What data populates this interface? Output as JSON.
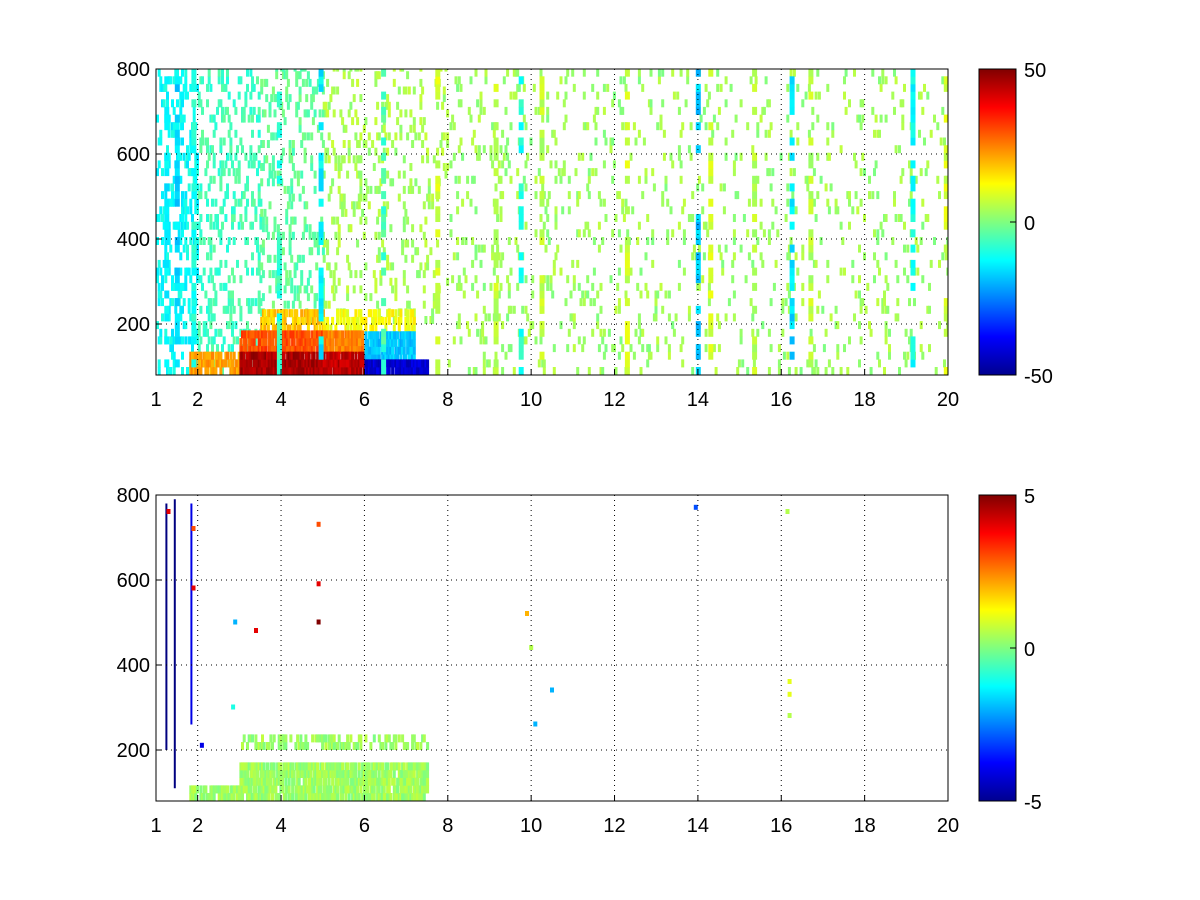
{
  "chart_data": [
    {
      "type": "heatmap",
      "title": "",
      "xlabel": "",
      "ylabel": "",
      "xlim": [
        1,
        20
      ],
      "ylim": [
        80,
        800
      ],
      "x_ticks": [
        1,
        2,
        4,
        6,
        8,
        10,
        12,
        14,
        16,
        18,
        20
      ],
      "x_tick_labels": [
        "1",
        "2",
        "4",
        "6",
        "8",
        "10",
        "12",
        "14",
        "16",
        "18",
        "20"
      ],
      "y_ticks": [
        200,
        400,
        600,
        800
      ],
      "y_tick_labels": [
        "200",
        "400",
        "600",
        "800"
      ],
      "grid": true,
      "colormap": "jet",
      "clim": [
        -50,
        50
      ],
      "colorbar_ticks": [
        50,
        0,
        -50
      ],
      "colorbar_tick_labels": [
        "50",
        "0",
        "-50"
      ],
      "regions": [
        {
          "x": [
            1.0,
            2.0
          ],
          "y": [
            80,
            800
          ],
          "value": -12,
          "density": 0.28
        },
        {
          "x": [
            2.0,
            3.5
          ],
          "y": [
            80,
            800
          ],
          "value": -6,
          "density": 0.22
        },
        {
          "x": [
            3.5,
            5.0
          ],
          "y": [
            200,
            800
          ],
          "value": -3,
          "density": 0.18
        },
        {
          "x": [
            5.0,
            8.0
          ],
          "y": [
            200,
            800
          ],
          "value": 4,
          "density": 0.13
        },
        {
          "x": [
            8.0,
            12.0
          ],
          "y": [
            80,
            800
          ],
          "value": 3,
          "density": 0.09
        },
        {
          "x": [
            12.0,
            20.0
          ],
          "y": [
            80,
            800
          ],
          "value": 3,
          "density": 0.07
        },
        {
          "x": [
            3.5,
            5.0
          ],
          "y": [
            180,
            220
          ],
          "value": 18,
          "density": 0.6
        },
        {
          "x": [
            5.0,
            7.2
          ],
          "y": [
            180,
            220
          ],
          "value": 12,
          "density": 0.5
        },
        {
          "x": [
            1.8,
            3.0
          ],
          "y": [
            80,
            120
          ],
          "value": 22,
          "density": 0.7
        },
        {
          "x": [
            3.0,
            5.0
          ],
          "y": [
            130,
            170
          ],
          "value": 30,
          "density": 0.95
        },
        {
          "x": [
            3.0,
            5.0
          ],
          "y": [
            80,
            130
          ],
          "value": 46,
          "density": 0.95
        },
        {
          "x": [
            5.0,
            6.0
          ],
          "y": [
            130,
            170
          ],
          "value": 25,
          "density": 0.9
        },
        {
          "x": [
            5.0,
            6.0
          ],
          "y": [
            80,
            130
          ],
          "value": 44,
          "density": 0.9
        },
        {
          "x": [
            6.0,
            7.2
          ],
          "y": [
            110,
            170
          ],
          "value": -18,
          "density": 0.9
        },
        {
          "x": [
            6.0,
            7.5
          ],
          "y": [
            80,
            110
          ],
          "value": -42,
          "density": 0.9
        }
      ],
      "stripes": [
        {
          "x": 1.2,
          "value": -14
        },
        {
          "x": 1.45,
          "value": -16
        },
        {
          "x": 1.85,
          "value": -10
        },
        {
          "x": 3.9,
          "value": -8
        },
        {
          "x": 4.9,
          "value": -14
        },
        {
          "x": 6.4,
          "value": -6
        },
        {
          "x": 7.7,
          "value": 8
        },
        {
          "x": 9.1,
          "value": 6
        },
        {
          "x": 9.7,
          "value": -10
        },
        {
          "x": 10.2,
          "value": 6
        },
        {
          "x": 12.25,
          "value": 8
        },
        {
          "x": 13.95,
          "value": -18
        },
        {
          "x": 14.25,
          "value": 8
        },
        {
          "x": 15.3,
          "value": 6
        },
        {
          "x": 16.2,
          "value": -16
        },
        {
          "x": 16.65,
          "value": 6
        },
        {
          "x": 19.1,
          "value": -12
        },
        {
          "x": 19.9,
          "value": 8
        }
      ]
    },
    {
      "type": "heatmap",
      "title": "",
      "xlabel": "",
      "ylabel": "",
      "xlim": [
        1,
        20
      ],
      "ylim": [
        80,
        800
      ],
      "x_ticks": [
        1,
        2,
        4,
        6,
        8,
        10,
        12,
        14,
        16,
        18,
        20
      ],
      "x_tick_labels": [
        "1",
        "2",
        "4",
        "6",
        "8",
        "10",
        "12",
        "14",
        "16",
        "18",
        "20"
      ],
      "y_ticks": [
        200,
        400,
        600,
        800
      ],
      "y_tick_labels": [
        "200",
        "400",
        "600",
        "800"
      ],
      "grid": true,
      "colormap": "jet",
      "clim": [
        -5,
        5
      ],
      "colorbar_ticks": [
        5,
        0,
        -5
      ],
      "colorbar_tick_labels": [
        "5",
        "0",
        "-5"
      ],
      "regions": [
        {
          "x": [
            3.0,
            7.5
          ],
          "y": [
            80,
            165
          ],
          "value": 0.3,
          "density": 0.85
        },
        {
          "x": [
            3.0,
            7.5
          ],
          "y": [
            200,
            225
          ],
          "value": 0.3,
          "density": 0.45
        },
        {
          "x": [
            1.8,
            3.0
          ],
          "y": [
            80,
            100
          ],
          "value": 0.3,
          "density": 0.8
        }
      ],
      "lines": [
        {
          "x": 1.25,
          "y": [
            200,
            780
          ],
          "value": -5
        },
        {
          "x": 1.45,
          "y": [
            110,
            790
          ],
          "value": -5
        },
        {
          "x": 1.85,
          "y": [
            260,
            780
          ],
          "value": -4
        }
      ],
      "points": [
        {
          "x": 1.3,
          "y": 760,
          "value": 4
        },
        {
          "x": 1.9,
          "y": 720,
          "value": 3
        },
        {
          "x": 1.9,
          "y": 580,
          "value": 4
        },
        {
          "x": 2.9,
          "y": 500,
          "value": -2
        },
        {
          "x": 3.4,
          "y": 480,
          "value": 4
        },
        {
          "x": 4.9,
          "y": 730,
          "value": 3
        },
        {
          "x": 4.9,
          "y": 590,
          "value": 4
        },
        {
          "x": 4.9,
          "y": 500,
          "value": 5
        },
        {
          "x": 9.9,
          "y": 520,
          "value": 2
        },
        {
          "x": 10.0,
          "y": 440,
          "value": 0.5
        },
        {
          "x": 10.5,
          "y": 340,
          "value": -2
        },
        {
          "x": 10.1,
          "y": 260,
          "value": -2
        },
        {
          "x": 13.95,
          "y": 770,
          "value": -3
        },
        {
          "x": 16.15,
          "y": 760,
          "value": 0.5
        },
        {
          "x": 16.2,
          "y": 360,
          "value": 1
        },
        {
          "x": 16.2,
          "y": 330,
          "value": 1
        },
        {
          "x": 16.2,
          "y": 280,
          "value": 0.5
        },
        {
          "x": 2.1,
          "y": 210,
          "value": -4
        },
        {
          "x": 2.85,
          "y": 300,
          "value": -1
        }
      ]
    }
  ]
}
